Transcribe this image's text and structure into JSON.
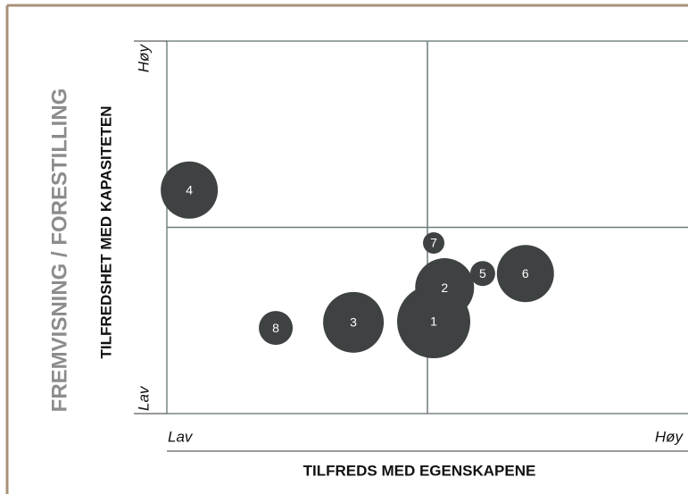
{
  "chart_data": {
    "type": "bubble",
    "group_label": "FREMVISNING / FORESTILLING",
    "ylabel": "TILFREDSHET MED KAPASITETEN",
    "xlabel": "TILFREDS MED EGENSKAPENE",
    "x_low": "Lav",
    "x_high": "Høy",
    "y_low": "Lav",
    "y_high": "Høy",
    "xlim": [
      0,
      10
    ],
    "ylim": [
      0,
      10
    ],
    "xref": 5,
    "yref": 5,
    "series": [
      {
        "color": "#3e4242",
        "labels": [
          "1",
          "2",
          "3",
          "4",
          "5",
          "6",
          "7",
          "8"
        ],
        "x": [
          5.12,
          5.33,
          3.58,
          0.43,
          6.06,
          6.88,
          5.12,
          2.09
        ],
        "values": [
          2.47,
          3.38,
          2.45,
          6.0,
          3.76,
          3.76,
          4.58,
          2.3
        ],
        "sizes": [
          41,
          33,
          34,
          32,
          14,
          32,
          12,
          19
        ]
      }
    ]
  }
}
